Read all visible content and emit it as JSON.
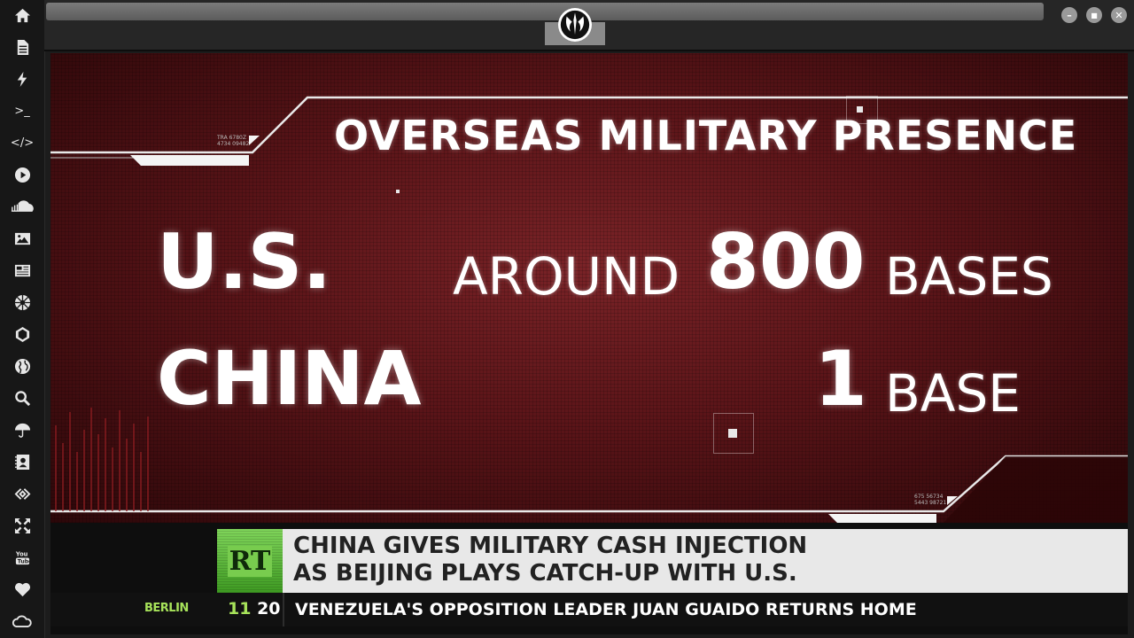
{
  "sidebar": {
    "items": [
      {
        "name": "home-icon"
      },
      {
        "name": "document-icon"
      },
      {
        "name": "lightning-icon"
      },
      {
        "name": "terminal-icon",
        "glyph": ">_"
      },
      {
        "name": "code-icon",
        "glyph": "</>"
      },
      {
        "name": "play-icon"
      },
      {
        "name": "soundcloud-icon"
      },
      {
        "name": "image-icon"
      },
      {
        "name": "news-icon"
      },
      {
        "name": "empire-icon"
      },
      {
        "name": "polygon-icon"
      },
      {
        "name": "globe-icon"
      },
      {
        "name": "search-icon"
      },
      {
        "name": "umbrella-icon"
      },
      {
        "name": "contacts-icon"
      },
      {
        "name": "link-icon"
      },
      {
        "name": "expand-icon"
      },
      {
        "name": "youtube-icon"
      },
      {
        "name": "heart-icon"
      },
      {
        "name": "cloud-icon"
      }
    ]
  },
  "window": {
    "logo_icon": "rebel-alliance-icon",
    "controls": {
      "minimize": "–",
      "maximize": "■",
      "close": "✕"
    }
  },
  "graphic": {
    "title": "OVERSEAS MILITARY PRESENCE",
    "rows": [
      {
        "country": "U.S.",
        "qualifier": "AROUND",
        "value": "800",
        "unit": "BASES"
      },
      {
        "country": "CHINA",
        "qualifier": "",
        "value": "1",
        "unit": "BASE"
      }
    ],
    "small_codes_left": [
      "TRA 6780Z",
      "4734 09482"
    ],
    "small_codes_right": [
      "675 56734",
      "5443 98721"
    ]
  },
  "lower_third": {
    "channel_logo": "RT",
    "headline_line1": "CHINA GIVES MILITARY CASH INJECTION",
    "headline_line2": "AS BEIJING PLAYS CATCH-UP WITH U.S.",
    "ticker_city": "BERLIN",
    "ticker_hour": "11",
    "ticker_minute": "20",
    "ticker_text": "VENEZUELA'S OPPOSITION LEADER JUAN GUAIDO RETURNS HOME"
  },
  "colors": {
    "graphic_red": "#5a1418",
    "rt_green": "#5bbf36",
    "headline_bg": "#e8e8e8",
    "ticker_bg": "#111111"
  }
}
